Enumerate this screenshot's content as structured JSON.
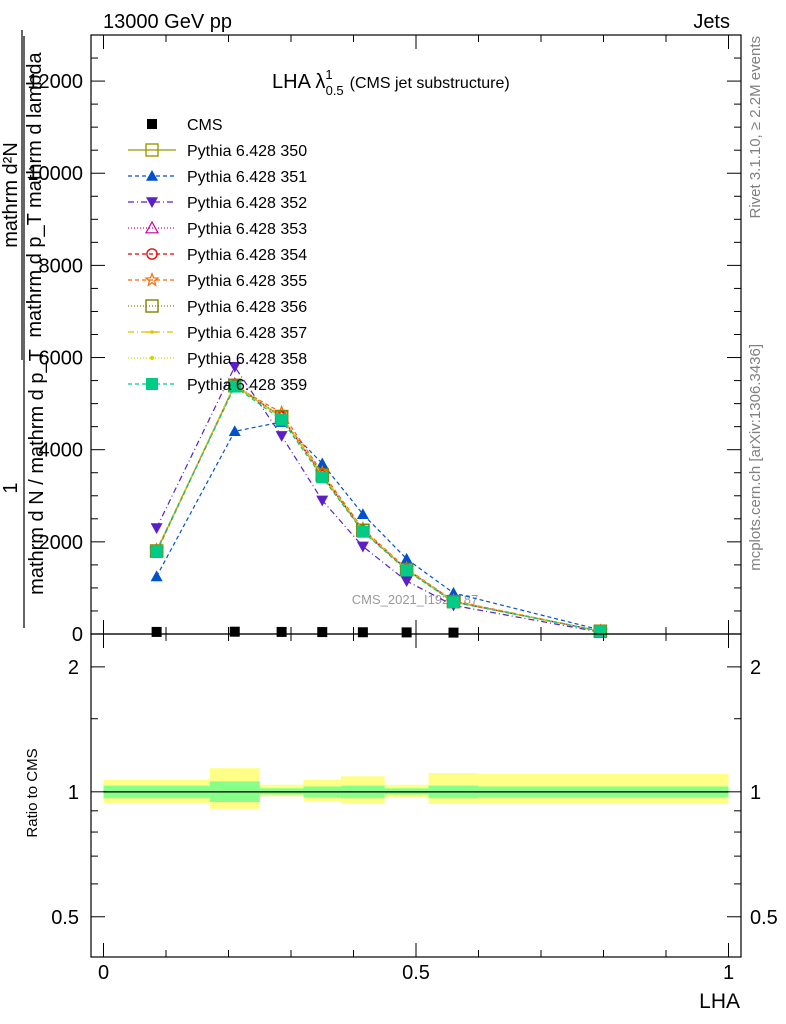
{
  "header": {
    "left": "13000 GeV pp",
    "right": "Jets"
  },
  "side_labels": {
    "rivet": "Rivet 3.1.10, ≥ 2.2M events",
    "mcplots": "mcplots.cern.ch [arXiv:1306.3436]"
  },
  "watermark": "CMS_2021_I1920187",
  "chart_data": [
    {
      "type": "line",
      "title": "LHA λ",
      "title_sup": "1",
      "title_sub": "0.5",
      "title_note": "(CMS jet substructure)",
      "xlabel": "",
      "ylabel_numerator": "mathrm d²N",
      "ylabel_denominator": "mathrm d p_T mathrm d lambda",
      "ylabel_overall_numerator": "1",
      "ylabel_overall_denominator": "mathrm d N / mathrm d p_T",
      "xlim": [
        -0.02,
        1.02
      ],
      "ylim": [
        0,
        13000
      ],
      "y_ticks": [
        "0",
        "2000",
        "4000",
        "6000",
        "8000",
        "10000",
        "12000"
      ],
      "x_bins": [
        [
          0.0,
          0.17
        ],
        [
          0.17,
          0.25
        ],
        [
          0.25,
          0.32
        ],
        [
          0.32,
          0.38
        ],
        [
          0.38,
          0.45
        ],
        [
          0.45,
          0.52
        ],
        [
          0.52,
          0.6
        ],
        [
          0.6,
          1.0
        ]
      ],
      "x": [
        0.085,
        0.21,
        0.285,
        0.35,
        0.415,
        0.485,
        0.56,
        0.795
      ],
      "series": [
        {
          "name": "CMS",
          "color": "#000000",
          "marker": "square-filled",
          "dash": "none",
          "values": [
            45,
            50,
            45,
            42,
            38,
            35,
            30,
            0
          ]
        },
        {
          "name": "Pythia 6.428 350",
          "color": "#999900",
          "marker": "square-open",
          "dash": "solid",
          "values": [
            1800,
            5400,
            4700,
            3450,
            2250,
            1400,
            700,
            60
          ]
        },
        {
          "name": "Pythia 6.428 351",
          "color": "#0052cc",
          "marker": "triangle-up-filled",
          "dash": "4,3",
          "values": [
            1250,
            4400,
            4600,
            3700,
            2600,
            1630,
            890,
            90
          ]
        },
        {
          "name": "Pythia 6.428 352",
          "color": "#5a1fc7",
          "marker": "triangle-down-filled",
          "dash": "6,3,1,3",
          "values": [
            2300,
            5800,
            4300,
            2900,
            1900,
            1150,
            620,
            40
          ]
        },
        {
          "name": "Pythia 6.428 353",
          "color": "#cc0099",
          "marker": "triangle-up-open",
          "dash": "1,2",
          "values": [
            1790,
            5420,
            4720,
            3460,
            2260,
            1410,
            710,
            60
          ]
        },
        {
          "name": "Pythia 6.428 354",
          "color": "#e60000",
          "marker": "circle-open",
          "dash": "4,3",
          "values": [
            1780,
            5400,
            4710,
            3440,
            2240,
            1400,
            700,
            60
          ]
        },
        {
          "name": "Pythia 6.428 355",
          "color": "#ff6600",
          "marker": "star-open",
          "dash": "4,3",
          "values": [
            1820,
            5380,
            4800,
            3500,
            2280,
            1420,
            720,
            60
          ]
        },
        {
          "name": "Pythia 6.428 356",
          "color": "#808000",
          "marker": "square-open",
          "dash": "1,2",
          "values": [
            1800,
            5390,
            4720,
            3450,
            2250,
            1400,
            705,
            60
          ]
        },
        {
          "name": "Pythia 6.428 357",
          "color": "#e6c000",
          "marker": "dash-dot",
          "dash": "6,3,1,3",
          "values": [
            1810,
            5410,
            4710,
            3450,
            2255,
            1405,
            700,
            60
          ]
        },
        {
          "name": "Pythia 6.428 358",
          "color": "#ccdd00",
          "marker": "dot",
          "dash": "1,2",
          "values": [
            1795,
            5400,
            4700,
            3445,
            2250,
            1400,
            700,
            60
          ]
        },
        {
          "name": "Pythia 6.428 359",
          "color": "#00cc88",
          "marker": "square-filled",
          "dash": "4,3",
          "values": [
            1800,
            5370,
            4650,
            3400,
            2220,
            1380,
            690,
            60
          ]
        }
      ]
    },
    {
      "type": "area",
      "xlabel": "LHA",
      "ylabel": "Ratio to CMS",
      "xlim": [
        -0.02,
        1.02
      ],
      "y_scale": "log",
      "ylim": [
        0.4,
        2.4
      ],
      "y_ticks": [
        "0.5",
        "1",
        "2"
      ],
      "x_ticks": [
        "0",
        "0.5",
        "1"
      ],
      "reference": 1,
      "bands": {
        "inner_color": "#88ff88",
        "outer_color": "#ffff88",
        "inner": [
          [
            0.965,
            1.035
          ],
          [
            0.945,
            1.06
          ],
          [
            0.985,
            1.02
          ],
          [
            0.97,
            1.03
          ],
          [
            0.965,
            1.035
          ],
          [
            0.985,
            1.02
          ],
          [
            0.965,
            1.035
          ],
          [
            0.97,
            1.03
          ]
        ],
        "outer": [
          [
            0.94,
            1.07
          ],
          [
            0.91,
            1.14
          ],
          [
            0.975,
            1.04
          ],
          [
            0.95,
            1.07
          ],
          [
            0.935,
            1.09
          ],
          [
            0.97,
            1.04
          ],
          [
            0.935,
            1.11
          ],
          [
            0.935,
            1.105
          ]
        ]
      }
    }
  ]
}
